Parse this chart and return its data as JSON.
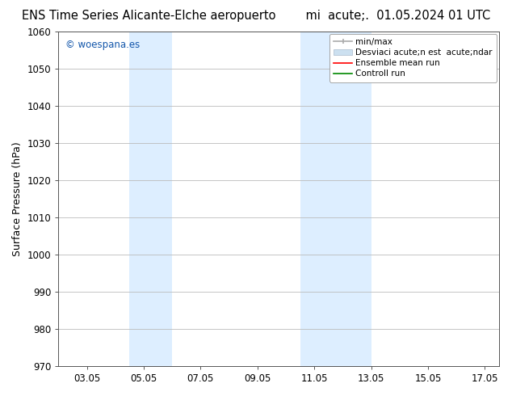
{
  "title_left": "ENS Time Series Alicante-Elche aeropuerto",
  "title_right": "mi  acute;.  01.05.2024 01 UTC",
  "ylabel": "Surface Pressure (hPa)",
  "ylim": [
    970,
    1060
  ],
  "yticks": [
    970,
    980,
    990,
    1000,
    1010,
    1020,
    1030,
    1040,
    1050,
    1060
  ],
  "xtick_labels": [
    "03.05",
    "05.05",
    "07.05",
    "09.05",
    "11.05",
    "13.05",
    "15.05",
    "17.05"
  ],
  "xtick_positions": [
    3,
    5,
    7,
    9,
    11,
    13,
    15,
    17
  ],
  "xlim": [
    2.0,
    17.5
  ],
  "shaded_bands": [
    {
      "xmin": 4.5,
      "xmax": 6.0,
      "color": "#ddeeff"
    },
    {
      "xmin": 10.5,
      "xmax": 13.0,
      "color": "#ddeeff"
    }
  ],
  "watermark": "© woespana.es",
  "watermark_color": "#1155aa",
  "bg_color": "#ffffff",
  "plot_bg_color": "#ffffff",
  "grid_color": "#bbbbbb",
  "legend_labels": [
    "min/max",
    "Desviaci acute;n est acute;ndar",
    "Ensemble mean run",
    "Controll run"
  ],
  "legend_colors": [
    "#aaaaaa",
    "#cce0f0",
    "#ff0000",
    "#008800"
  ],
  "title_fontsize": 10.5,
  "axis_label_fontsize": 9,
  "tick_fontsize": 8.5,
  "watermark_fontsize": 8.5,
  "legend_fontsize": 7.5
}
